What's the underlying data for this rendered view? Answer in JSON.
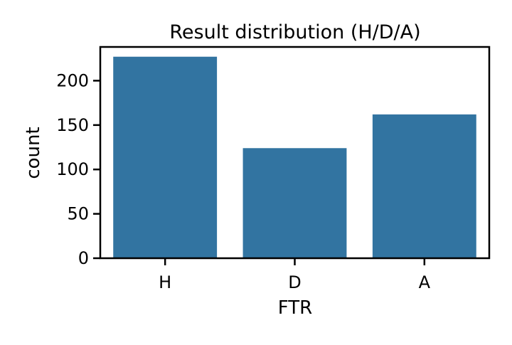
{
  "chart_data": {
    "type": "bar",
    "title": "Result distribution (H/D/A)",
    "xlabel": "FTR",
    "ylabel": "count",
    "categories": [
      "H",
      "D",
      "A"
    ],
    "values": [
      227,
      124,
      162
    ],
    "ylim": [
      0,
      238
    ],
    "yticks": [
      0,
      50,
      100,
      150,
      200
    ],
    "bar_color": "#3274a1",
    "grid": false,
    "legend": "none"
  }
}
